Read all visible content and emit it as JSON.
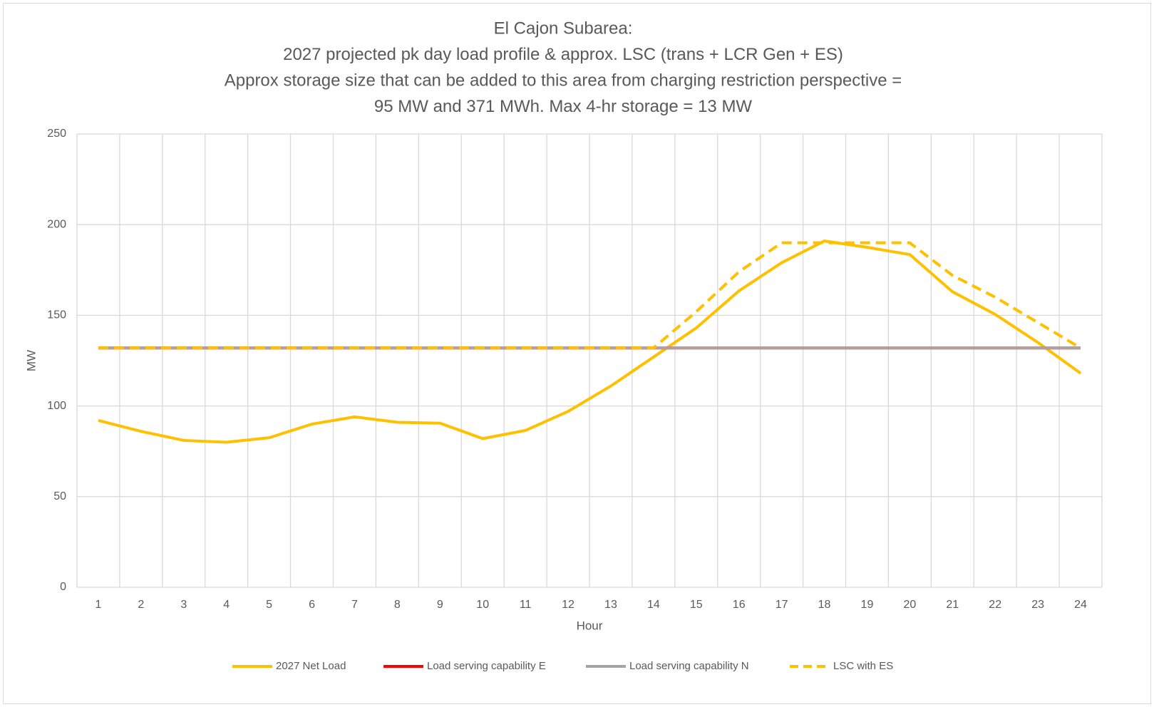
{
  "chart_data": {
    "type": "line",
    "title": [
      "El Cajon Subarea:",
      "2027 projected pk day load profile & approx. LSC (trans + LCR Gen + ES)",
      "Approx storage size that can be added to this area from charging restriction perspective =",
      "95 MW and 371 MWh. Max 4-hr storage = 13 MW"
    ],
    "x_label": "Hour",
    "y_label": "MW",
    "categories": [
      "1",
      "2",
      "3",
      "4",
      "5",
      "6",
      "7",
      "8",
      "9",
      "10",
      "11",
      "12",
      "13",
      "14",
      "15",
      "16",
      "17",
      "18",
      "19",
      "20",
      "21",
      "22",
      "23",
      "24"
    ],
    "ylim": [
      0,
      250
    ],
    "yticks": [
      0,
      50,
      100,
      150,
      200,
      250
    ],
    "grid": true,
    "legend": "bottom",
    "series": [
      {
        "name": "2027 Net Load",
        "color": "#ffc000",
        "dash": false,
        "values": [
          92,
          86,
          81,
          80,
          82.5,
          90,
          94,
          91,
          90.5,
          82,
          86.5,
          97,
          111,
          127,
          143,
          163.5,
          179,
          191,
          187.5,
          183.5,
          163,
          150.5,
          135,
          118
        ]
      },
      {
        "name": "Load serving capability E",
        "color": "#ff0000",
        "dash": false,
        "values": [
          132,
          132,
          132,
          132,
          132,
          132,
          132,
          132,
          132,
          132,
          132,
          132,
          132,
          132,
          132,
          132,
          132,
          132,
          132,
          132,
          132,
          132,
          132,
          132
        ]
      },
      {
        "name": "Load serving capability N",
        "color": "#a5a5a5",
        "dash": false,
        "values": [
          132,
          132,
          132,
          132,
          132,
          132,
          132,
          132,
          132,
          132,
          132,
          132,
          132,
          132,
          132,
          132,
          132,
          132,
          132,
          132,
          132,
          132,
          132,
          132
        ]
      },
      {
        "name": "LSC with ES",
        "color": "#ffc000",
        "dash": true,
        "values": [
          132,
          132,
          132,
          132,
          132,
          132,
          132,
          132,
          132,
          132,
          132,
          132,
          132,
          132,
          152,
          174,
          190,
          190,
          190,
          190,
          172,
          160,
          146,
          132
        ]
      }
    ]
  }
}
